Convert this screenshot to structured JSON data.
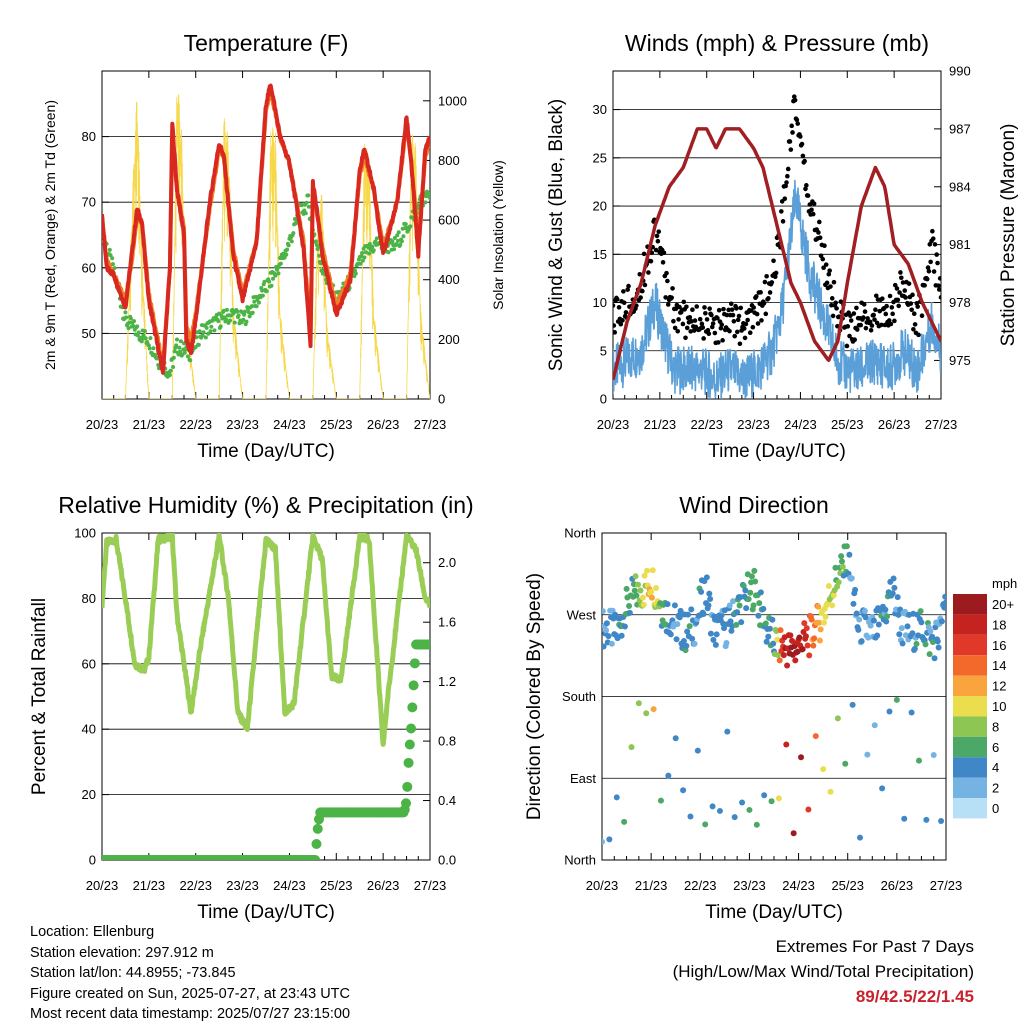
{
  "x_ticks": [
    "20/23",
    "21/23",
    "22/23",
    "23/23",
    "24/23",
    "25/23",
    "26/23",
    "27/23"
  ],
  "x_label": "Time (Day/UTC)",
  "colors": {
    "red": "#d9281f",
    "orange": "#f07e25",
    "green": "#4cb347",
    "yellow": "#f7d84a",
    "black": "#000000",
    "blue": "#5a9fd8",
    "maroon": "#a11e22",
    "rh": "#9acd55",
    "rain": "#4cb347"
  },
  "info": {
    "location": "Location: Ellenburg",
    "elevation": "Station elevation: 297.912 m",
    "latlon": "Station lat/lon: 44.8955; -73.845",
    "created": "Figure created on Sun, 2025-07-27, at 23:43 UTC",
    "recent": "Most recent data timestamp: 2025/07/27 23:15:00"
  },
  "extremes": {
    "line1": "Extremes For Past 7 Days",
    "line2": "(High/Low/Max Wind/Total Precipitation)",
    "values": "89/42.5/22/1.45"
  },
  "chart_data": [
    {
      "type": "line",
      "title": "Temperature (F)",
      "xlabel": "Time (Day/UTC)",
      "ylabel": "2m & 9m T (Red, Orange) & 2m Td (Green)",
      "y2label": "Solar Insolation (Yellow)",
      "ylim": [
        40,
        90
      ],
      "y2lim": [
        0,
        1100
      ],
      "yticks": [
        50,
        60,
        70,
        80
      ],
      "y2ticks": [
        0,
        200,
        400,
        600,
        800,
        1000
      ],
      "x_days": [
        0,
        1,
        2,
        3,
        4,
        5,
        6,
        7
      ],
      "series": [
        {
          "name": "2m T",
          "color": "red",
          "x": [
            0,
            0.1,
            0.25,
            0.5,
            0.65,
            0.75,
            0.85,
            1.0,
            1.3,
            1.45,
            1.5,
            1.6,
            1.75,
            1.8,
            1.9,
            2.0,
            2.3,
            2.5,
            2.6,
            2.8,
            3.0,
            3.3,
            3.5,
            3.6,
            3.8,
            4.0,
            4.3,
            4.45,
            4.5,
            4.6,
            4.7,
            5.0,
            5.3,
            5.5,
            5.6,
            5.8,
            6.0,
            6.3,
            6.5,
            6.6,
            6.75,
            6.9,
            7.0
          ],
          "y": [
            68,
            60,
            59,
            54,
            63,
            69,
            67,
            55,
            44,
            60,
            82,
            72,
            65,
            49,
            47,
            52,
            70,
            79,
            77,
            62,
            55,
            64,
            85,
            88,
            80,
            76,
            63,
            48,
            73,
            68,
            62,
            53,
            58,
            75,
            78,
            72,
            62,
            70,
            83,
            76,
            62,
            78,
            80
          ]
        },
        {
          "name": "9m T",
          "color": "orange",
          "x": [
            0,
            0.1,
            0.25,
            0.5,
            0.65,
            0.75,
            0.85,
            1.0,
            1.3,
            1.45,
            1.5,
            1.6,
            1.75,
            1.8,
            1.9,
            2.0,
            2.3,
            2.5,
            2.6,
            2.8,
            3.0,
            3.3,
            3.5,
            3.6,
            3.8,
            4.0,
            4.3,
            4.45,
            4.5,
            4.6,
            4.7,
            5.0,
            5.3,
            5.5,
            5.6,
            5.8,
            6.0,
            6.3,
            6.5,
            6.6,
            6.75,
            6.9,
            7.0
          ],
          "y": [
            68,
            61,
            59,
            55,
            62,
            68,
            67,
            56,
            45,
            60,
            80,
            72,
            66,
            51,
            49,
            53,
            69,
            78,
            77,
            63,
            56,
            64,
            84,
            87,
            80,
            76,
            64,
            50,
            72,
            68,
            63,
            54,
            59,
            74,
            77,
            72,
            63,
            70,
            82,
            76,
            64,
            77,
            79
          ]
        },
        {
          "name": "2m Td",
          "color": "green",
          "x": [
            0,
            0.3,
            0.5,
            0.8,
            1.0,
            1.2,
            1.45,
            1.6,
            1.9,
            2.1,
            2.5,
            2.8,
            3.0,
            3.3,
            3.6,
            3.9,
            4.2,
            4.4,
            4.5,
            4.7,
            5.0,
            5.3,
            5.6,
            5.9,
            6.2,
            6.5,
            6.8,
            7.0
          ],
          "y": [
            66,
            58,
            52,
            50,
            49,
            46,
            44,
            48,
            47,
            50,
            52,
            53,
            52,
            55,
            58,
            62,
            68,
            70,
            66,
            60,
            55,
            58,
            62,
            64,
            63,
            66,
            70,
            71
          ]
        },
        {
          "name": "Solar",
          "color": "yellow",
          "axis": "right",
          "x": [
            0,
            0.5,
            0.65,
            0.75,
            0.85,
            1.0,
            1.5,
            1.6,
            1.7,
            1.8,
            2.0,
            2.5,
            2.6,
            2.7,
            2.8,
            3.0,
            3.5,
            3.6,
            3.7,
            3.8,
            4.0,
            4.5,
            4.6,
            4.7,
            4.8,
            5.0,
            5.5,
            5.6,
            5.7,
            5.8,
            6.0,
            6.5,
            6.6,
            6.7,
            6.8,
            7.0
          ],
          "y": [
            0,
            0,
            700,
            1050,
            500,
            0,
            0,
            1100,
            900,
            300,
            0,
            0,
            950,
            880,
            320,
            0,
            0,
            920,
            900,
            300,
            0,
            0,
            620,
            700,
            250,
            0,
            0,
            880,
            800,
            300,
            0,
            0,
            900,
            850,
            300,
            0
          ]
        }
      ]
    },
    {
      "type": "scatter",
      "title": "Winds (mph) & Pressure (mb)",
      "xlabel": "Time (Day/UTC)",
      "ylabel": "Sonic Wind & Gust (Blue, Black)",
      "y2label": "Station Pressure (Maroon)",
      "ylim": [
        0,
        34
      ],
      "y2lim": [
        973,
        990
      ],
      "yticks": [
        0,
        5,
        10,
        15,
        20,
        25,
        30
      ],
      "y2ticks": [
        975,
        978,
        981,
        984,
        987,
        990
      ],
      "x_days": [
        0,
        1,
        2,
        3,
        4,
        5,
        6,
        7
      ],
      "series": [
        {
          "name": "Gust",
          "color": "black",
          "x": [
            0,
            0.3,
            0.6,
            0.9,
            1.0,
            1.3,
            1.6,
            1.9,
            2.2,
            2.5,
            2.8,
            3.1,
            3.4,
            3.6,
            3.8,
            3.9,
            4.0,
            4.2,
            4.4,
            4.6,
            4.8,
            5.0,
            5.3,
            5.6,
            5.9,
            6.2,
            6.5,
            6.8,
            7.0
          ],
          "y": [
            8,
            10,
            12,
            18,
            15,
            9,
            8,
            8,
            7,
            9,
            7,
            9,
            12,
            18,
            28,
            31,
            26,
            20,
            17,
            12,
            9,
            7,
            8,
            9,
            9,
            12,
            8,
            16,
            11
          ]
        },
        {
          "name": "Wind",
          "color": "blue",
          "x": [
            0,
            0.3,
            0.6,
            0.9,
            1.0,
            1.3,
            1.6,
            1.9,
            2.2,
            2.5,
            2.8,
            3.1,
            3.4,
            3.6,
            3.8,
            3.9,
            4.0,
            4.2,
            4.4,
            4.6,
            4.8,
            5.0,
            5.3,
            5.6,
            5.9,
            6.2,
            6.5,
            6.8,
            7.0
          ],
          "y": [
            3,
            4,
            5,
            10,
            8,
            3,
            3,
            3,
            2,
            3,
            2,
            3,
            5,
            9,
            17,
            21,
            18,
            13,
            10,
            7,
            4,
            3,
            3,
            4,
            3,
            5,
            3,
            8,
            5
          ]
        },
        {
          "name": "Pressure",
          "color": "maroon",
          "axis": "right",
          "type": "line",
          "x": [
            0,
            0.3,
            0.6,
            0.9,
            1.2,
            1.5,
            1.8,
            2.0,
            2.2,
            2.4,
            2.7,
            3.0,
            3.2,
            3.5,
            3.8,
            4.0,
            4.3,
            4.6,
            4.8,
            5.0,
            5.3,
            5.6,
            5.8,
            6.0,
            6.3,
            6.6,
            6.8,
            7.0
          ],
          "y": [
            974,
            977,
            979,
            982,
            984,
            985,
            987,
            987,
            986,
            987,
            987,
            986,
            985,
            982,
            979,
            978,
            976,
            975,
            976,
            979,
            983,
            985,
            984,
            981,
            980,
            978,
            977,
            976
          ]
        }
      ]
    },
    {
      "type": "line",
      "title": "Relative Humidity (%) & Precipitation (in)",
      "xlabel": "Time (Day/UTC)",
      "ylabel": "Percent & Total Rainfall",
      "ylim": [
        0,
        100
      ],
      "y2lim": [
        0,
        2.2
      ],
      "yticks": [
        0,
        20,
        40,
        60,
        80,
        100
      ],
      "y2ticks": [
        0.0,
        0.4,
        0.8,
        1.2,
        1.6,
        2.0
      ],
      "x_days": [
        0,
        1,
        2,
        3,
        4,
        5,
        6,
        7
      ],
      "series": [
        {
          "name": "RH",
          "color": "rh",
          "x": [
            0,
            0.1,
            0.3,
            0.5,
            0.7,
            0.9,
            1.0,
            1.2,
            1.5,
            1.6,
            1.9,
            2.1,
            2.5,
            2.7,
            2.9,
            3.1,
            3.5,
            3.7,
            3.9,
            4.1,
            4.5,
            4.7,
            4.9,
            5.1,
            5.5,
            5.7,
            6.0,
            6.1,
            6.5,
            6.7,
            6.9,
            7.0
          ],
          "y": [
            78,
            97,
            98,
            80,
            60,
            58,
            62,
            98,
            99,
            75,
            45,
            65,
            99,
            80,
            45,
            40,
            98,
            95,
            45,
            48,
            99,
            92,
            56,
            55,
            99,
            98,
            35,
            50,
            99,
            95,
            80,
            78
          ]
        },
        {
          "name": "Rain",
          "color": "rain",
          "axis": "right",
          "x": [
            0,
            4.55,
            4.6,
            4.65,
            6.2,
            6.45,
            6.5,
            6.55,
            6.6,
            6.7,
            7.0
          ],
          "y": [
            0,
            0,
            0.2,
            0.32,
            0.32,
            0.32,
            0.4,
            0.7,
            0.9,
            1.45,
            1.45
          ]
        }
      ]
    },
    {
      "type": "scatter",
      "title": "Wind Direction",
      "xlabel": "Time (Day/UTC)",
      "ylabel": "Direction (Colored By Speed)",
      "ylim": [
        0,
        360
      ],
      "ytick_labels": [
        "North",
        "East",
        "South",
        "West",
        "North"
      ],
      "legend_unit": "mph",
      "legend": [
        "20+",
        "18",
        "16",
        "14",
        "12",
        "10",
        "8",
        "6",
        "4",
        "2",
        "0"
      ],
      "legend_colors": [
        "#9b1b1e",
        "#c4231f",
        "#e0392a",
        "#f2692b",
        "#f9a43d",
        "#eade4e",
        "#8ec653",
        "#4ca866",
        "#3f87c6",
        "#74b3e2",
        "#b7e0f7"
      ],
      "series": [
        {
          "name": "Direction",
          "x": [
            0.1,
            0.3,
            0.6,
            0.9,
            1.0,
            1.2,
            1.5,
            1.7,
            1.9,
            2.1,
            2.3,
            2.6,
            2.9,
            3.1,
            3.3,
            3.5,
            3.7,
            3.9,
            4.1,
            4.3,
            4.5,
            4.7,
            4.9,
            5.0,
            5.2,
            5.5,
            5.7,
            5.9,
            6.1,
            6.3,
            6.5,
            6.7,
            6.9,
            7.0
          ],
          "y": [
            255,
            250,
            290,
            300,
            310,
            280,
            260,
            250,
            260,
            300,
            250,
            260,
            290,
            300,
            260,
            240,
            235,
            230,
            240,
            250,
            270,
            300,
            320,
            330,
            260,
            250,
            260,
            300,
            255,
            250,
            260,
            240,
            250,
            290
          ],
          "speed": [
            3,
            4,
            6,
            9,
            12,
            6,
            3,
            4,
            3,
            5,
            3,
            4,
            5,
            7,
            4,
            5,
            18,
            20,
            18,
            14,
            10,
            8,
            6,
            4,
            3,
            3,
            4,
            5,
            3,
            4,
            5,
            4,
            3,
            4
          ]
        }
      ]
    }
  ]
}
